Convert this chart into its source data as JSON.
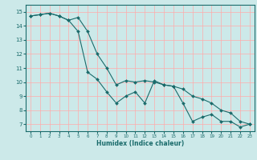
{
  "xlabel": "Humidex (Indice chaleur)",
  "bg_color": "#cce9e9",
  "grid_color": "#ffaaaa",
  "line_color": "#1a6b6b",
  "xlim": [
    -0.5,
    23.5
  ],
  "ylim": [
    6.5,
    15.5
  ],
  "xticks": [
    0,
    1,
    2,
    3,
    4,
    5,
    6,
    7,
    8,
    9,
    10,
    11,
    12,
    13,
    14,
    15,
    16,
    17,
    18,
    19,
    20,
    21,
    22,
    23
  ],
  "yticks": [
    7,
    8,
    9,
    10,
    11,
    12,
    13,
    14,
    15
  ],
  "line1_x": [
    0,
    1,
    2,
    3,
    4,
    5,
    6,
    7,
    8,
    9,
    10,
    11,
    12,
    13,
    14,
    15,
    16,
    17,
    18,
    19,
    20,
    21,
    22,
    23
  ],
  "line1_y": [
    14.7,
    14.8,
    14.9,
    14.7,
    14.4,
    13.6,
    10.7,
    10.2,
    9.3,
    8.5,
    9.0,
    9.3,
    8.5,
    10.1,
    9.8,
    9.7,
    8.5,
    7.2,
    7.5,
    7.7,
    7.2,
    7.2,
    6.8,
    7.0
  ],
  "line2_x": [
    0,
    1,
    2,
    3,
    4,
    5,
    6,
    7,
    8,
    9,
    10,
    11,
    12,
    13,
    14,
    15,
    16,
    17,
    18,
    19,
    20,
    21,
    22,
    23
  ],
  "line2_y": [
    14.7,
    14.8,
    14.9,
    14.7,
    14.4,
    14.6,
    13.6,
    12.0,
    11.0,
    9.8,
    10.1,
    10.0,
    10.1,
    10.0,
    9.8,
    9.7,
    9.5,
    9.0,
    8.8,
    8.5,
    8.0,
    7.8,
    7.2,
    7.0
  ]
}
